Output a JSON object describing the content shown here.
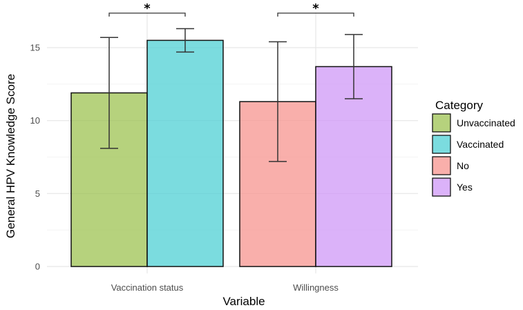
{
  "chart_data": {
    "type": "bar",
    "xlabel": "Variable",
    "ylabel": "General HPV Knowledge Score",
    "ylim": [
      0,
      17
    ],
    "yticks": [
      0,
      5,
      10,
      15
    ],
    "grid": true,
    "legend": {
      "title": "Category",
      "placement": "right",
      "entries": [
        {
          "name": "Unvaccinated",
          "color": "#9dc352"
        },
        {
          "name": "Vaccinated",
          "color": "#4fd0d4"
        },
        {
          "name": "No",
          "color": "#f7948f"
        },
        {
          "name": "Yes",
          "color": "#cf98f7"
        }
      ]
    },
    "groups": [
      {
        "label": "Vaccination status",
        "bars": [
          {
            "category": "Unvaccinated",
            "value": 11.9,
            "err_low": 8.1,
            "err_high": 15.7
          },
          {
            "category": "Vaccinated",
            "value": 15.5,
            "err_low": 14.7,
            "err_high": 16.3
          }
        ],
        "significance": "*"
      },
      {
        "label": "Willingness",
        "bars": [
          {
            "category": "No",
            "value": 11.3,
            "err_low": 7.2,
            "err_high": 15.4
          },
          {
            "category": "Yes",
            "value": 13.7,
            "err_low": 11.5,
            "err_high": 15.9
          }
        ],
        "significance": "*"
      }
    ]
  }
}
